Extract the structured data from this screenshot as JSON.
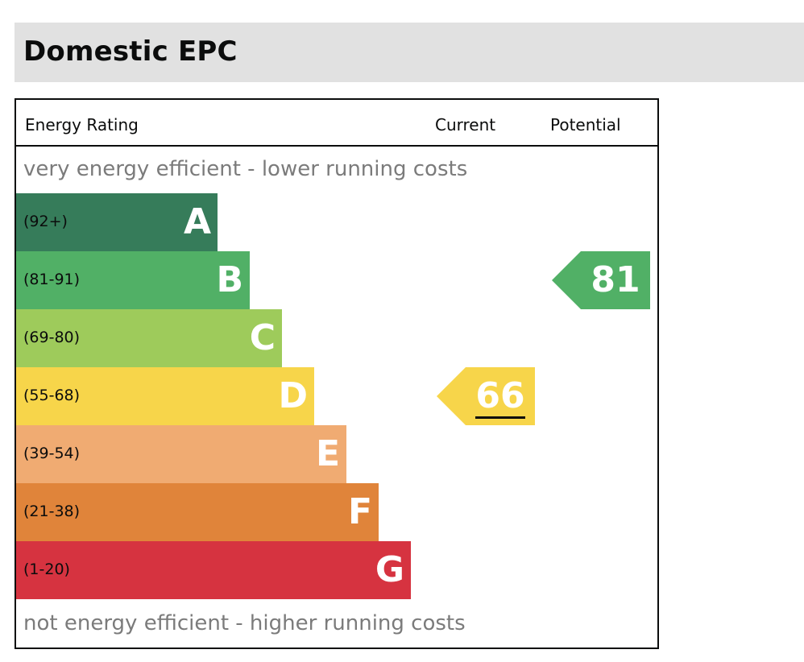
{
  "page": {
    "title": "Domestic EPC"
  },
  "chart_data": {
    "type": "bar",
    "title": "Domestic EPC",
    "header": {
      "rating": "Energy Rating",
      "current": "Current",
      "potential": "Potential"
    },
    "top_note": "very energy efficient - lower running costs",
    "bottom_note": "not energy efficient - higher running costs",
    "bands": [
      {
        "letter": "A",
        "range": "(92+)",
        "min": 92,
        "max": 100,
        "color": "#367c5a"
      },
      {
        "letter": "B",
        "range": "(81-91)",
        "min": 81,
        "max": 91,
        "color": "#51b066"
      },
      {
        "letter": "C",
        "range": "(69-80)",
        "min": 69,
        "max": 80,
        "color": "#9ecb5b"
      },
      {
        "letter": "D",
        "range": "(55-68)",
        "min": 55,
        "max": 68,
        "color": "#f7d54a"
      },
      {
        "letter": "E",
        "range": "(39-54)",
        "min": 39,
        "max": 54,
        "color": "#f0ab72"
      },
      {
        "letter": "F",
        "range": "(21-38)",
        "min": 21,
        "max": 38,
        "color": "#e0843a"
      },
      {
        "letter": "G",
        "range": "(1-20)",
        "min": 1,
        "max": 20,
        "color": "#d63340"
      }
    ],
    "current": {
      "value": 66,
      "band": "D",
      "color": "#f7d54a"
    },
    "potential": {
      "value": 81,
      "band": "B",
      "color": "#51b066"
    }
  }
}
